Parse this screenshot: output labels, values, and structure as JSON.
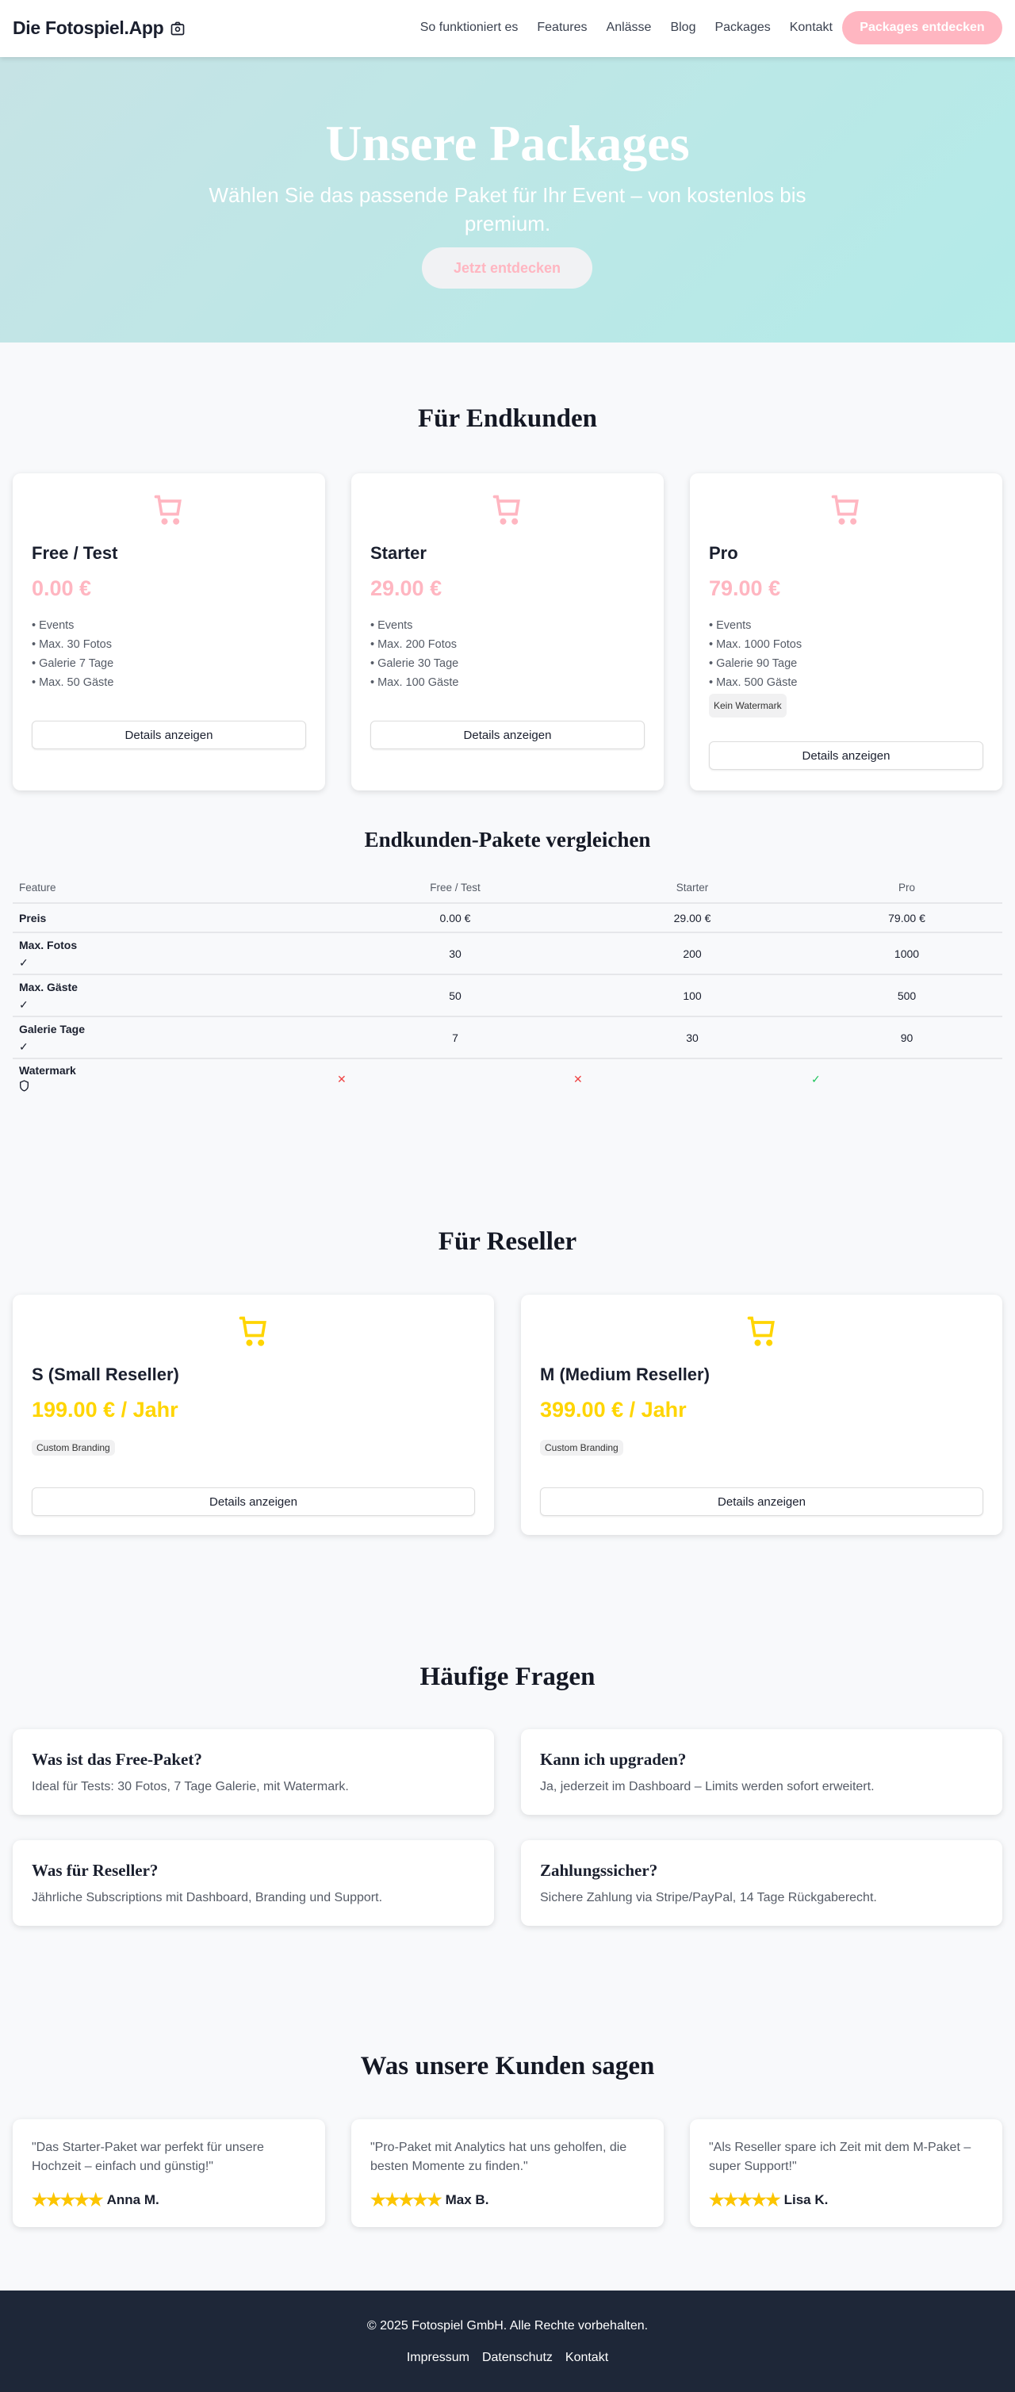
{
  "header": {
    "logo": "Die Fotospiel.App",
    "nav": [
      "So funktioniert es",
      "Features",
      "Anlässe",
      "Blog",
      "Packages",
      "Kontakt"
    ],
    "cta": "Packages entdecken"
  },
  "hero": {
    "title": "Unsere Packages",
    "subtitle": "Wählen Sie das passende Paket für Ihr Event – von kostenlos bis premium.",
    "button": "Jetzt entdecken"
  },
  "colors": {
    "pink": "#ffb6c1",
    "yellow": "#ffd500",
    "footer": "#1e2738"
  },
  "endkunden": {
    "title": "Für Endkunden",
    "packages": [
      {
        "name": "Free / Test",
        "price": "0.00 €",
        "features": [
          "• Events",
          "• Max. 30 Fotos",
          "• Galerie 7 Tage",
          "• Max. 50 Gäste"
        ],
        "badge": null,
        "button": "Details anzeigen"
      },
      {
        "name": "Starter",
        "price": "29.00 €",
        "features": [
          "• Events",
          "• Max. 200 Fotos",
          "• Galerie 30 Tage",
          "• Max. 100 Gäste"
        ],
        "badge": null,
        "button": "Details anzeigen"
      },
      {
        "name": "Pro",
        "price": "79.00 €",
        "features": [
          "• Events",
          "• Max. 1000 Fotos",
          "• Galerie 90 Tage",
          "• Max. 500 Gäste"
        ],
        "badge": "Kein Watermark",
        "button": "Details anzeigen"
      }
    ]
  },
  "compare": {
    "title": "Endkunden-Pakete vergleichen",
    "headers": [
      "Feature",
      "Free / Test",
      "Starter",
      "Pro"
    ],
    "price_row": {
      "label": "Preis",
      "values": [
        "0.00 €",
        "29.00 €",
        "79.00 €"
      ]
    },
    "rows": [
      {
        "label": "Max. Fotos",
        "values": [
          "30",
          "200",
          "1000"
        ]
      },
      {
        "label": "Max. Gäste",
        "values": [
          "50",
          "100",
          "500"
        ]
      },
      {
        "label": "Galerie Tage",
        "values": [
          "7",
          "30",
          "90"
        ]
      }
    ],
    "watermark": {
      "label": "Watermark",
      "values": [
        false,
        false,
        true
      ]
    },
    "check": "✓",
    "cross": "✕"
  },
  "reseller": {
    "title": "Für Reseller",
    "packages": [
      {
        "name": "S (Small Reseller)",
        "price": "199.00 € / Jahr",
        "badge": "Custom Branding",
        "button": "Details anzeigen"
      },
      {
        "name": "M (Medium Reseller)",
        "price": "399.00 € / Jahr",
        "badge": "Custom Branding",
        "button": "Details anzeigen"
      }
    ]
  },
  "faq": {
    "title": "Häufige Fragen",
    "items": [
      {
        "q": "Was ist das Free-Paket?",
        "a": "Ideal für Tests: 30 Fotos, 7 Tage Galerie, mit Watermark."
      },
      {
        "q": "Kann ich upgraden?",
        "a": "Ja, jederzeit im Dashboard – Limits werden sofort erweitert."
      },
      {
        "q": "Was für Reseller?",
        "a": "Jährliche Subscriptions mit Dashboard, Branding und Support."
      },
      {
        "q": "Zahlungssicher?",
        "a": "Sichere Zahlung via Stripe/PayPal, 14 Tage Rückgaberecht."
      }
    ]
  },
  "testimonials": {
    "title": "Was unsere Kunden sagen",
    "items": [
      {
        "quote": "\"Das Starter-Paket war perfekt für unsere Hochzeit – einfach und günstig!\"",
        "name": "Anna M.",
        "rating": 5
      },
      {
        "quote": "\"Pro-Paket mit Analytics hat uns geholfen, die besten Momente zu finden.\"",
        "name": "Max B.",
        "rating": 5
      },
      {
        "quote": "\"Als Reseller spare ich Zeit mit dem M-Paket – super Support!\"",
        "name": "Lisa K.",
        "rating": 5
      }
    ]
  },
  "footer": {
    "copyright": "© 2025 Fotospiel GmbH. Alle Rechte vorbehalten.",
    "links": [
      "Impressum",
      "Datenschutz",
      "Kontakt"
    ]
  }
}
